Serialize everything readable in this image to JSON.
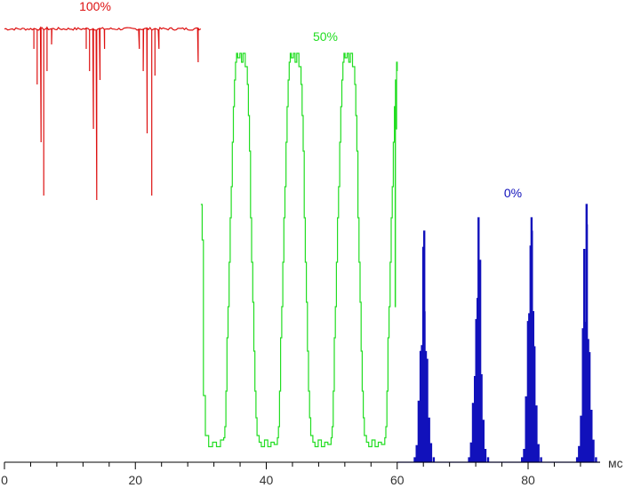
{
  "chart_data": {
    "type": "line",
    "x_unit": "мс",
    "xlim": [
      0,
      91
    ],
    "ylim": [
      0,
      1
    ],
    "x_ticks": [
      0,
      20,
      40,
      60,
      80
    ],
    "x_tick_labels": [
      "0",
      "20",
      "40",
      "60",
      "80"
    ],
    "grid": false,
    "series": [
      {
        "name": "100%",
        "color": "#dd1111",
        "x_range": [
          0,
          30
        ],
        "baseline": 0.975,
        "spikes": [
          {
            "x": 4.5,
            "y": 0.93
          },
          {
            "x": 5.0,
            "y": 0.85
          },
          {
            "x": 5.6,
            "y": 0.72
          },
          {
            "x": 6.0,
            "y": 0.6
          },
          {
            "x": 6.5,
            "y": 0.88
          },
          {
            "x": 7.2,
            "y": 0.94
          },
          {
            "x": 12.5,
            "y": 0.93
          },
          {
            "x": 13.0,
            "y": 0.88
          },
          {
            "x": 13.6,
            "y": 0.75
          },
          {
            "x": 14.1,
            "y": 0.59
          },
          {
            "x": 14.6,
            "y": 0.86
          },
          {
            "x": 15.3,
            "y": 0.93
          },
          {
            "x": 20.6,
            "y": 0.93
          },
          {
            "x": 21.2,
            "y": 0.88
          },
          {
            "x": 21.8,
            "y": 0.74
          },
          {
            "x": 22.5,
            "y": 0.6
          },
          {
            "x": 23.0,
            "y": 0.87
          },
          {
            "x": 23.6,
            "y": 0.93
          },
          {
            "x": 29.6,
            "y": 0.9
          }
        ]
      },
      {
        "name": "50%",
        "color": "#22dd22",
        "x_range": [
          30,
          60
        ],
        "low": 0.035,
        "high": 0.92,
        "period": 8.2,
        "start_phase_x": 33.5,
        "start_y": 0.58
      },
      {
        "name": "0%",
        "color": "#1111bb",
        "x_range": [
          60,
          91
        ],
        "baseline": 0.0,
        "peak_centers": [
          64.0,
          72.3,
          80.4,
          88.8
        ],
        "peak_heights": [
          0.52,
          0.55,
          0.55,
          0.58
        ]
      }
    ]
  }
}
